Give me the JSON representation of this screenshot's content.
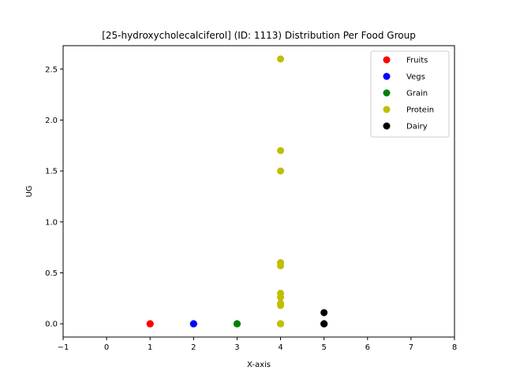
{
  "chart_data": {
    "type": "scatter",
    "title": "[25-hydroxycholecalciferol] (ID: 1113) Distribution Per Food Group",
    "xlabel": "X-axis",
    "ylabel": "UG",
    "xlim": [
      -1,
      8
    ],
    "ylim": [
      -0.13,
      2.73
    ],
    "xticks": [
      -1,
      0,
      1,
      2,
      3,
      4,
      5,
      6,
      7,
      8
    ],
    "yticks": [
      0.0,
      0.5,
      1.0,
      1.5,
      2.0,
      2.5
    ],
    "ytick_labels": [
      "0.0",
      "0.5",
      "1.0",
      "1.5",
      "2.0",
      "2.5"
    ],
    "legend_position": "top-right",
    "grid": false,
    "series": [
      {
        "name": "Fruits",
        "color": "#ff0000",
        "x": [
          1,
          1,
          1
        ],
        "y": [
          0,
          0,
          0
        ]
      },
      {
        "name": "Vegs",
        "color": "#0000ff",
        "x": [
          2,
          2,
          2
        ],
        "y": [
          0,
          0,
          0
        ]
      },
      {
        "name": "Grain",
        "color": "#008000",
        "x": [
          3,
          3,
          3
        ],
        "y": [
          0,
          0,
          0
        ]
      },
      {
        "name": "Protein",
        "color": "#bfbf00",
        "x": [
          4,
          4,
          4,
          4,
          4,
          4,
          4,
          4,
          4,
          4,
          4,
          4,
          4
        ],
        "y": [
          2.6,
          1.7,
          1.5,
          0.6,
          0.57,
          0.3,
          0.26,
          0.2,
          0.18,
          0.0,
          0.0,
          0.0,
          0.0
        ]
      },
      {
        "name": "Dairy",
        "color": "#000000",
        "x": [
          5,
          5,
          5,
          5
        ],
        "y": [
          0.11,
          0.0,
          0.0,
          0.0
        ]
      }
    ]
  }
}
